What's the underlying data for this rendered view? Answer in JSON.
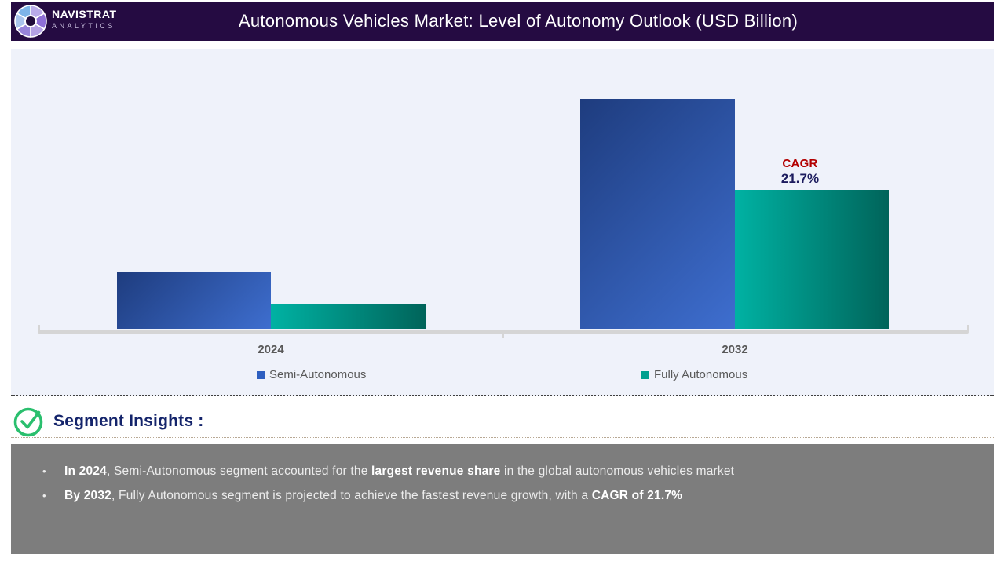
{
  "header": {
    "brand_name": "NAVISTRAT",
    "brand_sub": "ANALYTICS",
    "title": "Autonomous Vehicles Market: Level of Autonomy Outlook (USD Billion)",
    "bg_color": "#250b42",
    "logo_wedge_colors": [
      "#b9aae9",
      "#8e6fd6",
      "#b4a2e4",
      "#9784da",
      "#a9c4ec",
      "#7db4e8"
    ]
  },
  "chart_data": {
    "type": "bar",
    "title": "Autonomous Vehicles Market: Level of Autonomy Outlook (USD Billion)",
    "categories": [
      "2024",
      "2032"
    ],
    "series": [
      {
        "name": "Semi-Autonomous",
        "values": [
          73,
          293
        ],
        "color_start": "#1e3c7e",
        "color_end": "#3e6ecf",
        "gradient_angle": "135deg",
        "legend_color": "#2e5fc0"
      },
      {
        "name": "Fully Autonomous",
        "values": [
          31,
          177
        ],
        "color_start": "#00b2a3",
        "color_end": "#00645a",
        "gradient_angle": "90deg",
        "legend_color": "#00a08f"
      }
    ],
    "value_axis": "none shown (values are relative bar heights in px; no numeric labels in source)",
    "ylim": null,
    "grid": false,
    "legend_position": "bottom",
    "annotation": {
      "label": "CAGR",
      "value": "21.7%",
      "label_color": "#b30000",
      "value_color": "#1c1c5e"
    },
    "axis_color": "#d5d5d5",
    "background": "#eff2fa"
  },
  "insights": {
    "heading": "Segment Insights :",
    "icon": "check-circle-icon",
    "icon_color": "#2abf6e",
    "box_color": "#7d7d7d",
    "bullets": [
      [
        {
          "text": "In 2024",
          "bold": true
        },
        {
          "text": ", Semi-Autonomous segment accounted for the ",
          "bold": false
        },
        {
          "text": "largest revenue share",
          "bold": true
        },
        {
          "text": " in the global autonomous vehicles market",
          "bold": false
        }
      ],
      [
        {
          "text": "By 2032",
          "bold": true
        },
        {
          "text": ", Fully Autonomous segment is projected to achieve the fastest revenue growth, with a ",
          "bold": false
        },
        {
          "text": "CAGR of 21.7%",
          "bold": true
        }
      ]
    ]
  }
}
